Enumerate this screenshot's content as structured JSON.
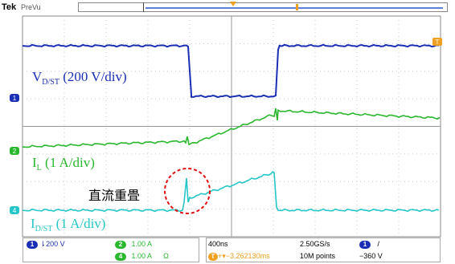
{
  "header": {
    "brand": "Tek",
    "mode": "PreVu"
  },
  "labels": {
    "v_ch1": "V",
    "v_ch1_sub": "D/ST",
    "v_ch1_scale": " (200 V/div)",
    "i_l": "I",
    "i_l_sub": "L",
    "i_l_scale": " (1 A/div)",
    "i_dst": "I",
    "i_dst_sub": "D/ST",
    "i_dst_scale": " (1 A/div)",
    "annotation": "直流重畳"
  },
  "markers": {
    "ch1": "1",
    "ch2": "2",
    "ch4": "4",
    "trigger": "T"
  },
  "status": {
    "ch1_scale": "200 V",
    "ch1_coupling": "⇂",
    "ch2_scale": "1.00 A",
    "ch4_scale": "1.00 A",
    "ch4_unit": "Ω",
    "timebase": "400ns",
    "sample_rate": "2.50GS/s",
    "trigger_channel": "1",
    "trigger_slope": "/",
    "position": "+▾−3.262130ms",
    "record_length": "10M points",
    "trigger_level": "−360 V"
  },
  "colors": {
    "ch1": "#1a2fb5",
    "ch2": "#29b82d",
    "ch4": "#25c6c8",
    "trigger": "#f0a020",
    "annotation": "#e01010"
  }
}
